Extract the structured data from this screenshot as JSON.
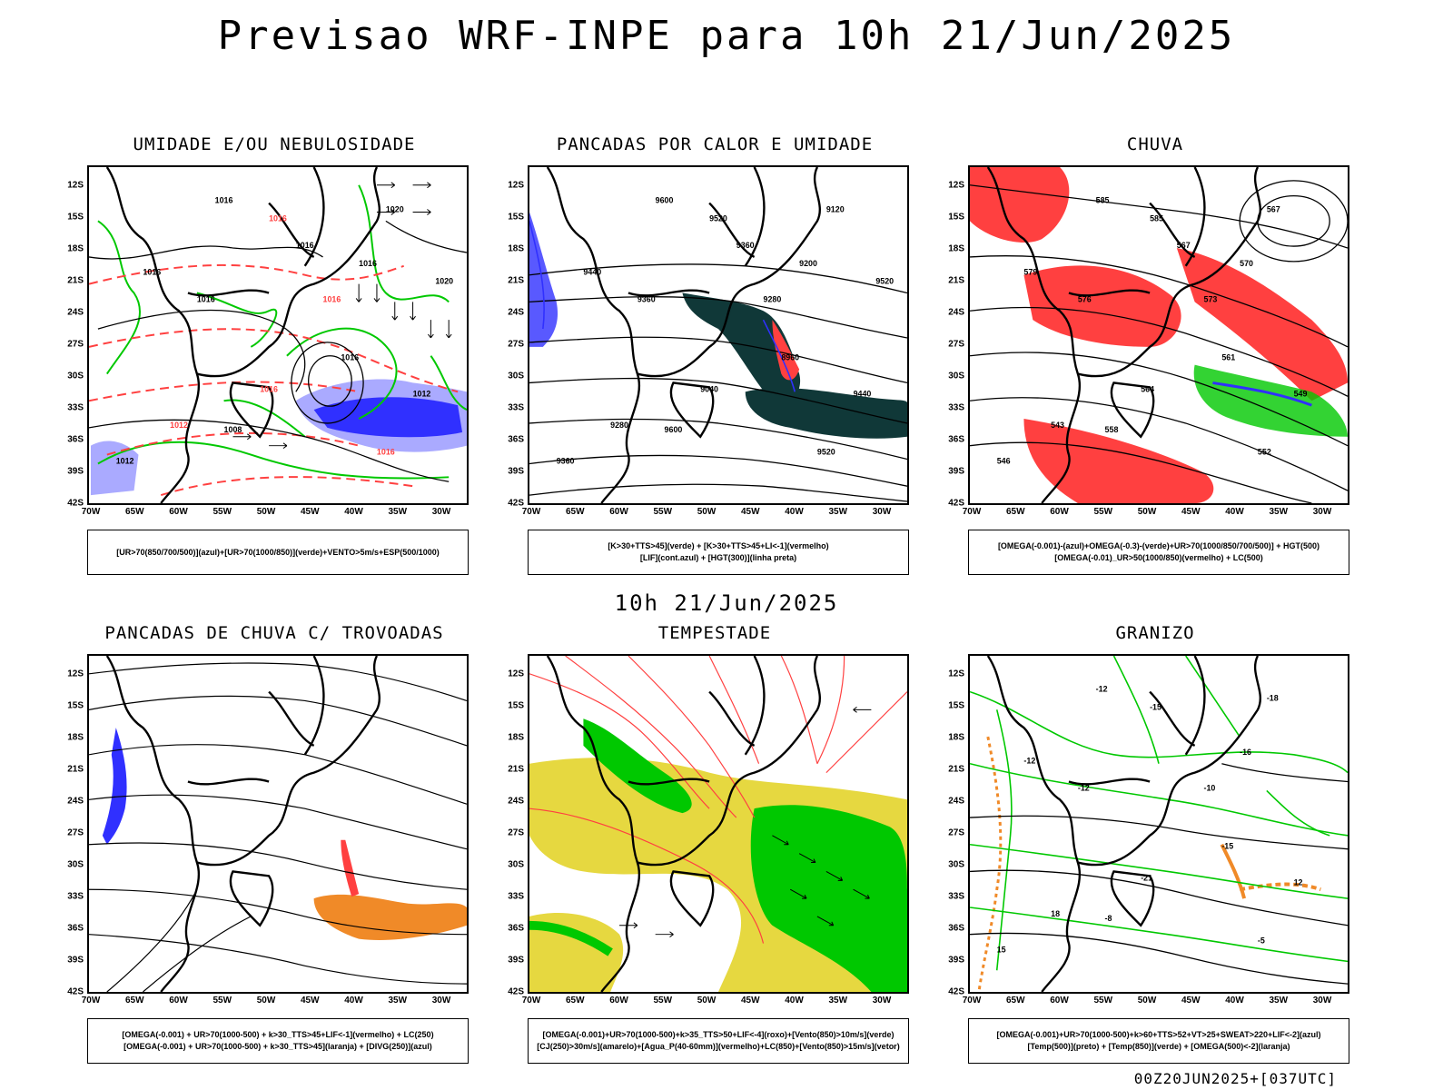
{
  "header": {
    "title": "Previsao WRF-INPE  para 10h 21/Jun/2025",
    "mid_title": "10h 21/Jun/2025",
    "run_id": "00Z20JUN2025+[037UTC]"
  },
  "axes": {
    "latitudes": [
      "12S",
      "15S",
      "18S",
      "21S",
      "24S",
      "27S",
      "30S",
      "33S",
      "36S",
      "39S",
      "42S"
    ],
    "longitudes": [
      "70W",
      "65W",
      "60W",
      "55W",
      "50W",
      "45W",
      "40W",
      "35W",
      "30W"
    ]
  },
  "panels": [
    {
      "title": "UMIDADE E/OU NEBULOSIDADE",
      "legend": [
        "[UR>70(850/700/500)](azul)+[UR>70(1000/850)](verde)+VENTO>5m/s+ESP(500/1000)"
      ],
      "contour_labels": [
        "1016",
        "1016",
        "1016",
        "1016",
        "1016",
        "1016",
        "1020",
        "1016",
        "1016",
        "1008",
        "1016",
        "1012",
        "1012",
        "1012",
        "1016",
        "1020"
      ]
    },
    {
      "title": "PANCADAS POR CALOR E UMIDADE",
      "legend": [
        "[K>30+TTS>45](verde) + [K>30+TTS>45+LI<-1](vermelho)",
        "[LIF](cont.azul) + [HGT(300)](linha preta)"
      ],
      "contour_labels": [
        "9600",
        "9520",
        "9440",
        "9360",
        "9280",
        "9200",
        "9120",
        "9040",
        "8960",
        "9600",
        "9520",
        "9440",
        "9360",
        "9280",
        "9360",
        "9520"
      ]
    },
    {
      "title": "CHUVA",
      "legend": [
        "[OMEGA(-0.001)-(azul)+OMEGA(-0.3)-(verde)+UR>70(1000/850/700/500)] + HGT(500)",
        "[OMEGA(-0.01)_UR>50(1000/850)(vermelho) + LC(500)"
      ],
      "contour_labels": [
        "585",
        "585",
        "579",
        "576",
        "573",
        "570",
        "567",
        "564",
        "561",
        "558",
        "552",
        "549",
        "546",
        "543",
        "567"
      ]
    },
    {
      "title": "PANCADAS DE CHUVA C/ TROVOADAS",
      "legend": [
        "[OMEGA(-0.001) + UR>70(1000-500) + k>30_TTS>45+LIF<-1](vermelho) + LC(250)",
        "[OMEGA(-0.001) + UR>70(1000-500) + k>30_TTS>45](laranja) + [DIVG(250)](azul)"
      ],
      "contour_labels": []
    },
    {
      "title": "TEMPESTADE",
      "legend": [
        "[OMEGA(-0.001)+UR>70(1000-500)+k>35_TTS>50+LIF<-4](roxo)+[Vento(850)>10m/s](verde)",
        "[CJ(250)>30m/s](amarelo)+[Agua_P(40-60mm)](vermelho)+LC(850)+[Vento(850)>15m/s](vetor)"
      ],
      "contour_labels": []
    },
    {
      "title": "GRANIZO",
      "legend": [
        "[OMEGA(-0.001)+UR>70(1000-500)+k>60+TTS>52+VT>25+SWEAT>220+LIF<-2](azul)",
        "[Temp(500)](preto) + [Temp(850)](verde) + [OMEGA(500)<-2](laranja)"
      ],
      "contour_labels": [
        "-12",
        "-15",
        "-12",
        "-12",
        "-10",
        "-16",
        "-18",
        "-21",
        "-15",
        "-8",
        "-5",
        "12",
        "15",
        "18"
      ]
    }
  ],
  "colors": {
    "blue": "#3030ff",
    "light_blue": "#aaaaff",
    "green": "#00c800",
    "red": "#ff4040",
    "dark_teal": "#103838",
    "yellow": "#e6d840",
    "orange": "#f08a28",
    "black": "#000000"
  }
}
